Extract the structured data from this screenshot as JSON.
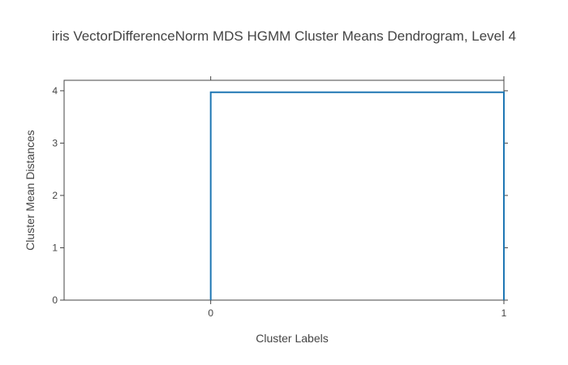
{
  "chart_data": {
    "type": "line",
    "title": "iris VectorDifferenceNorm MDS HGMM Cluster Means Dendrogram, Level 4",
    "xlabel": "Cluster Labels",
    "ylabel": "Cluster Mean Distances",
    "x_ticks": [
      "0",
      "1"
    ],
    "y_ticks": [
      0,
      1,
      2,
      3,
      4
    ],
    "xlim": [
      -0.5,
      1.0
    ],
    "ylim": [
      0,
      4.2
    ],
    "grid": false,
    "series": [
      {
        "x": [
          0,
          0,
          1,
          1
        ],
        "y": [
          0,
          3.97,
          3.97,
          0
        ],
        "color": "#1f77b4"
      }
    ]
  }
}
